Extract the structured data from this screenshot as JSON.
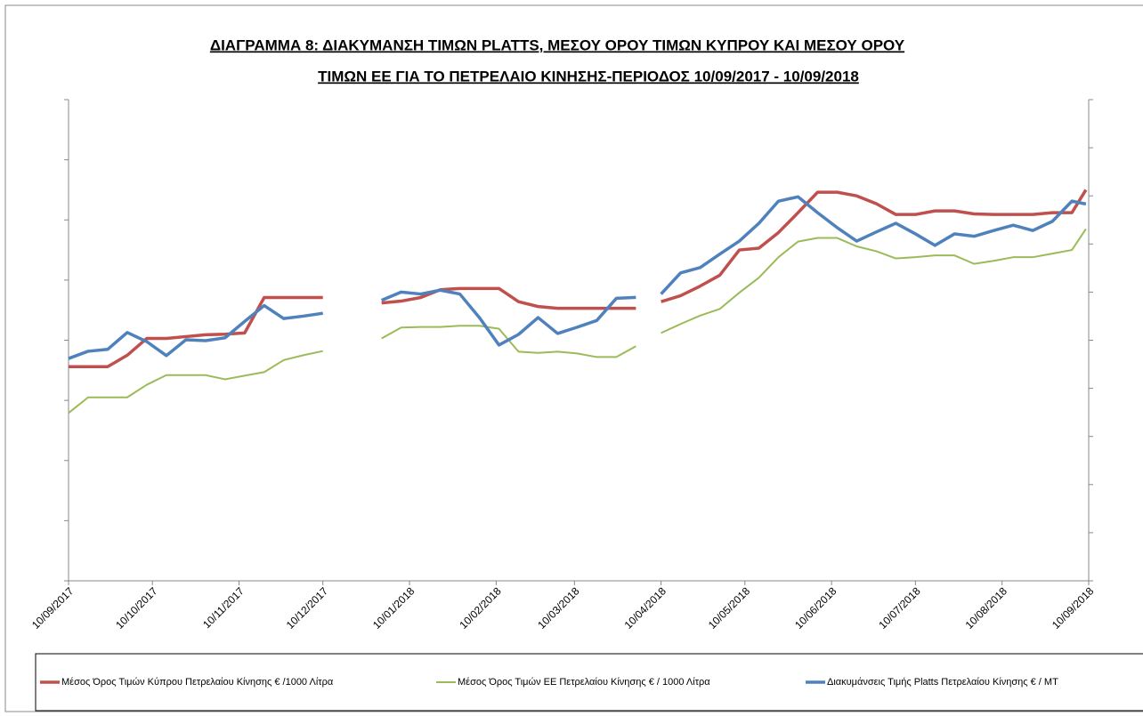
{
  "chart_data": {
    "type": "line",
    "title": [
      "ΔΙΑΓΡΑΜΜΑ 8: ΔΙΑΚΥΜΑΝΣΗ ΤΙΜΩΝ PLATTS, ΜΕΣΟΥ ΟΡΟΥ ΤΙΜΩΝ ΚΥΠΡΟΥ ΚΑΙ ΜΕΣΟΥ ΟΡΟΥ",
      "ΤΙΜΩΝ ΕΕ ΓΙΑ ΤΟ ΠΕΤΡΕΛΑΙΟ ΚΙΝΗΣΗΣ-ΠΕΡΙΟΔΟΣ  10/09/2017 - 10/09/2018"
    ],
    "x": [
      0,
      7,
      14,
      21,
      28,
      35,
      42,
      49,
      56,
      63,
      70,
      77,
      84,
      91,
      98,
      105,
      112,
      119,
      126,
      133,
      140,
      147,
      154,
      161,
      168,
      175,
      182,
      189,
      196,
      203,
      207,
      212,
      219,
      226,
      233,
      240,
      247,
      254,
      261,
      268,
      275,
      282,
      289,
      296,
      303,
      310,
      317,
      324,
      331,
      338,
      345,
      352,
      359,
      364
    ],
    "xlim": [
      0,
      365
    ],
    "xticks": [
      {
        "value": 0,
        "label": "10/09/2017"
      },
      {
        "value": 30,
        "label": "10/10/2017"
      },
      {
        "value": 61,
        "label": "10/11/2017"
      },
      {
        "value": 91,
        "label": "10/12/2017"
      },
      {
        "value": 122,
        "label": "10/01/2018"
      },
      {
        "value": 153,
        "label": "10/02/2018"
      },
      {
        "value": 181,
        "label": "10/03/2018"
      },
      {
        "value": 212,
        "label": "10/04/2018"
      },
      {
        "value": 242,
        "label": "10/05/2018"
      },
      {
        "value": 273,
        "label": "10/06/2018"
      },
      {
        "value": 303,
        "label": "10/07/2018"
      },
      {
        "value": 334,
        "label": "10/08/2018"
      },
      {
        "value": 365,
        "label": "10/09/2018"
      }
    ],
    "ylim": [
      0,
      8
    ],
    "yticks": [
      0,
      1,
      2,
      3,
      4,
      5,
      6,
      7,
      8
    ],
    "y2lim": [
      0,
      10
    ],
    "y2ticks": [
      0,
      1,
      2,
      3,
      4,
      5,
      6,
      7,
      8,
      9,
      10
    ],
    "series": [
      {
        "name": "Μέσος Όρος Τιμών Κύπρου Πετρελαίου Κίνησης  € /1000 Λίτρα",
        "color": "#c0504d",
        "values": [
          3.56,
          3.56,
          3.56,
          3.75,
          4.03,
          4.03,
          4.06,
          4.09,
          4.1,
          4.12,
          4.71,
          4.71,
          4.71,
          4.71,
          null,
          null,
          4.62,
          4.65,
          4.71,
          4.84,
          4.86,
          4.86,
          4.86,
          4.64,
          4.56,
          4.53,
          4.53,
          4.53,
          4.53,
          4.53,
          null,
          4.64,
          4.74,
          4.9,
          5.08,
          5.5,
          5.53,
          5.79,
          6.12,
          6.46,
          6.46,
          6.4,
          6.27,
          6.09,
          6.09,
          6.15,
          6.15,
          6.1,
          6.09,
          6.09,
          6.09,
          6.12,
          6.12,
          6.5
        ]
      },
      {
        "name": "Μέσος Όρος Τιμών ΕΕ Πετρελαίου Κίνησης  € / 1000 Λίτρα",
        "color": "#9bbb59",
        "values": [
          2.79,
          3.05,
          3.05,
          3.05,
          3.26,
          3.42,
          3.42,
          3.42,
          3.35,
          3.41,
          3.47,
          3.67,
          3.75,
          3.82,
          null,
          null,
          4.03,
          4.21,
          4.22,
          4.22,
          4.24,
          4.24,
          4.19,
          3.81,
          3.79,
          3.81,
          3.78,
          3.72,
          3.72,
          3.9,
          null,
          4.12,
          4.27,
          4.41,
          4.52,
          4.79,
          5.04,
          5.38,
          5.64,
          5.7,
          5.7,
          5.56,
          5.48,
          5.36,
          5.38,
          5.41,
          5.41,
          5.27,
          5.32,
          5.38,
          5.38,
          5.44,
          5.5,
          5.85
        ]
      },
      {
        "name": "Διακυμάνσεις Τιμής Platts Πετρελαίου Κίνησης € / MT",
        "color": "#4f81bd",
        "axis": "y2",
        "values": [
          4.62,
          4.77,
          4.81,
          5.16,
          4.97,
          4.68,
          5.01,
          4.99,
          5.05,
          5.39,
          5.72,
          5.45,
          5.5,
          5.56,
          null,
          null,
          5.83,
          6.0,
          5.96,
          6.04,
          5.96,
          5.47,
          4.9,
          5.12,
          5.47,
          5.14,
          5.27,
          5.41,
          5.87,
          5.89,
          null,
          5.96,
          6.4,
          6.51,
          6.79,
          7.06,
          7.43,
          7.89,
          7.98,
          7.65,
          7.34,
          7.06,
          7.25,
          7.43,
          7.21,
          6.97,
          7.21,
          7.16,
          7.28,
          7.39,
          7.28,
          7.47,
          7.89,
          7.83
        ]
      }
    ]
  }
}
